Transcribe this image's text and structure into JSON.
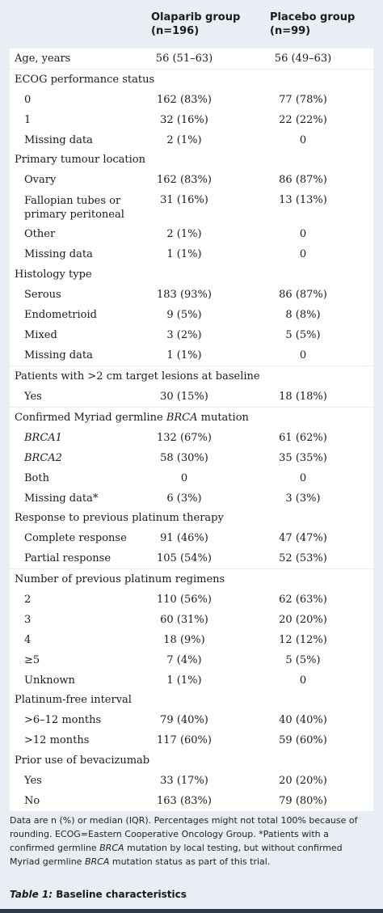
{
  "header": {
    "olaparib": "Olaparib group\n(n=196)",
    "placebo": "Placebo group\n(n=99)"
  },
  "rows": {
    "age": {
      "label": "Age, years",
      "ol": "56 (51–63)",
      "pl": "56 (49–63)"
    },
    "ecog": {
      "label": "ECOG performance status",
      "r0": {
        "label": "0",
        "ol": "162 (83%)",
        "pl": "77 (78%)"
      },
      "r1": {
        "label": "1",
        "ol": "32 (16%)",
        "pl": "22 (22%)"
      },
      "r2": {
        "label": "Missing data",
        "ol": "2 (1%)",
        "pl": "0"
      }
    },
    "tumour": {
      "label": "Primary tumour location",
      "r0": {
        "label": "Ovary",
        "ol": "162 (83%)",
        "pl": "86 (87%)"
      },
      "r1": {
        "label": "Fallopian tubes or primary peritoneal",
        "ol": "31 (16%)",
        "pl": "13 (13%)"
      },
      "r2": {
        "label": "Other",
        "ol": "2 (1%)",
        "pl": "0"
      },
      "r3": {
        "label": "Missing data",
        "ol": "1 (1%)",
        "pl": "0"
      }
    },
    "histology": {
      "label": "Histology type",
      "r0": {
        "label": "Serous",
        "ol": "183 (93%)",
        "pl": "86 (87%)"
      },
      "r1": {
        "label": "Endometrioid",
        "ol": "9 (5%)",
        "pl": "8 (8%)"
      },
      "r2": {
        "label": "Mixed",
        "ol": "3 (2%)",
        "pl": "5 (5%)"
      },
      "r3": {
        "label": "Missing data",
        "ol": "1 (1%)",
        "pl": "0"
      }
    },
    "lesions": {
      "label": "Patients with >2 cm target lesions at baseline",
      "r0": {
        "label": "Yes",
        "ol": "30 (15%)",
        "pl": "18 (18%)"
      }
    },
    "brca": {
      "label_pre": "Confirmed Myriad germline ",
      "label_it": "BRCA",
      "label_post": " mutation",
      "r0": {
        "label": "BRCA1",
        "ol": "132 (67%)",
        "pl": "61 (62%)"
      },
      "r1": {
        "label": "BRCA2",
        "ol": "58 (30%)",
        "pl": "35 (35%)"
      },
      "r2": {
        "label": "Both",
        "ol": "0",
        "pl": "0"
      },
      "r3": {
        "label": "Missing data*",
        "ol": "6 (3%)",
        "pl": "3 (3%)"
      }
    },
    "response": {
      "label": "Response to previous platinum therapy",
      "r0": {
        "label": "Complete response",
        "ol": "91 (46%)",
        "pl": "47 (47%)"
      },
      "r1": {
        "label": "Partial response",
        "ol": "105 (54%)",
        "pl": "52 (53%)"
      }
    },
    "regimens": {
      "label": "Number of previous platinum regimens",
      "r0": {
        "label": "2",
        "ol": "110 (56%)",
        "pl": "62 (63%)"
      },
      "r1": {
        "label": "3",
        "ol": "60 (31%)",
        "pl": "20 (20%)"
      },
      "r2": {
        "label": "4",
        "ol": "18 (9%)",
        "pl": "12 (12%)"
      },
      "r3": {
        "label": "≥5",
        "ol": "7 (4%)",
        "pl": "5 (5%)"
      },
      "r4": {
        "label": "Unknown",
        "ol": "1 (1%)",
        "pl": "0"
      }
    },
    "pfi": {
      "label": "Platinum-free interval",
      "r0": {
        "label": ">6–12 months",
        "ol": "79 (40%)",
        "pl": "40 (40%)"
      },
      "r1": {
        "label": ">12 months",
        "ol": "117 (60%)",
        "pl": "59 (60%)"
      }
    },
    "bev": {
      "label": "Prior use of bevacizumab",
      "r0": {
        "label": "Yes",
        "ol": "33 (17%)",
        "pl": "20 (20%)"
      },
      "r1": {
        "label": "No",
        "ol": "163 (83%)",
        "pl": "79 (80%)"
      }
    }
  },
  "footnote": {
    "part1": "Data are n (%) or median (IQR). Percentages might not total 100% because of rounding. ECOG=Eastern Cooperative Oncology Group. *Patients with a confirmed germline ",
    "italic1": "BRCA",
    "part2": " mutation by local testing, but without confirmed Myriad germline ",
    "italic2": "BRCA",
    "part3": " mutation status as part of this trial."
  },
  "caption": {
    "number": "Table 1:",
    "title": " Baseline characteristics"
  }
}
